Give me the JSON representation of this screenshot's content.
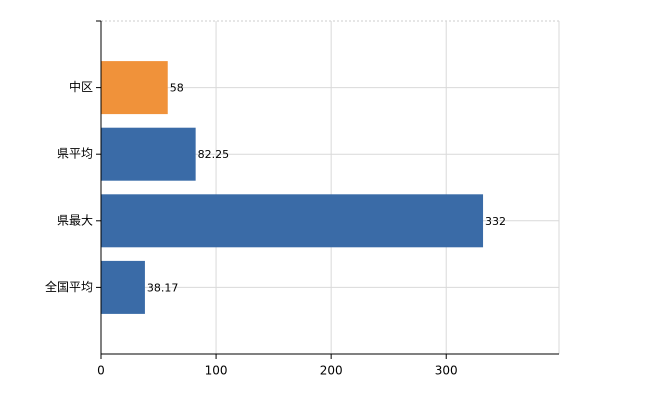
{
  "chart_data": {
    "type": "bar",
    "orientation": "horizontal",
    "categories": [
      "中区",
      "県平均",
      "県最大",
      "全国平均"
    ],
    "values": [
      58,
      82.25,
      332,
      38.17
    ],
    "colors": [
      "#f0923a",
      "#3a6ba7",
      "#3a6ba7",
      "#3a6ba7"
    ],
    "xlim": [
      0,
      398
    ],
    "xticks": [
      0,
      100,
      200,
      300
    ],
    "grid": true
  }
}
